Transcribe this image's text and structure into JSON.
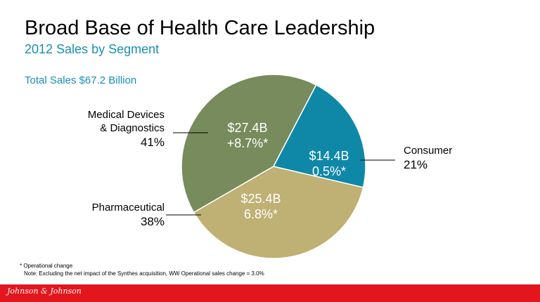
{
  "title": "Broad Base of Health Care Leadership",
  "subtitle": "2012 Sales by Segment",
  "total_sales": "Total Sales $67.2 Billion",
  "footnote": "* Operational change",
  "note": "Note: Excluding the net impact of the Synthes acquisition, WW Operational sales change = 3.0%",
  "logo_text": "Johnson & Johnson",
  "colors": {
    "medical_devices": "#788b5c",
    "consumer": "#0f88a8",
    "pharmaceutical": "#bfb073",
    "accent_text": "#1a8fb0",
    "footer": "#e3151d"
  },
  "chart_data": {
    "type": "pie",
    "title": "2012 Sales by Segment",
    "total": "Total Sales $67.2 Billion",
    "slices": [
      {
        "name": "Medical Devices & Diagnostics",
        "name_lines": [
          "Medical Devices",
          "& Diagnostics"
        ],
        "percent": 41,
        "percent_label": "41%",
        "sales_label": "$27.4B",
        "change_label": "+8.7%*",
        "color": "#788b5c"
      },
      {
        "name": "Consumer",
        "name_lines": [
          "Consumer"
        ],
        "percent": 21,
        "percent_label": "21%",
        "sales_label": "$14.4B",
        "change_label": "0.5%*",
        "color": "#0f88a8"
      },
      {
        "name": "Pharmaceutical",
        "name_lines": [
          "Pharmaceutical"
        ],
        "percent": 38,
        "percent_label": "38%",
        "sales_label": "$25.4B",
        "change_label": "6.8%*",
        "color": "#bfb073"
      }
    ]
  }
}
